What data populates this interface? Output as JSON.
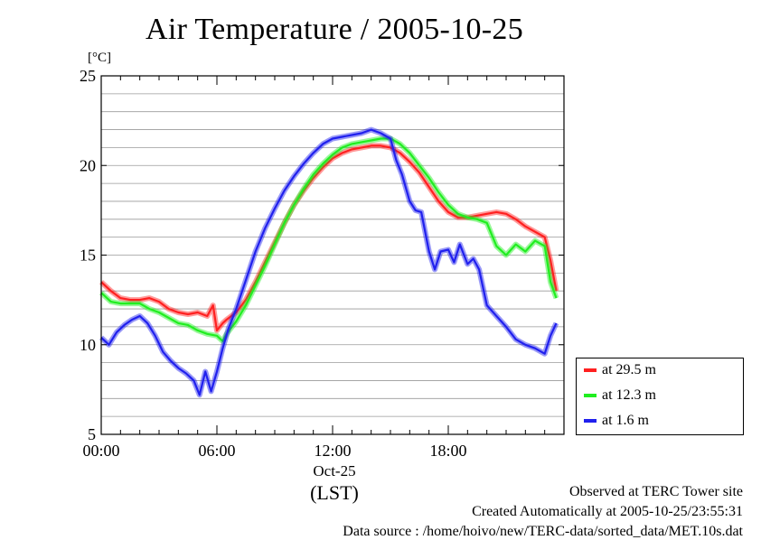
{
  "chart_data": {
    "type": "line",
    "title": "Air Temperature / 2005-10-25",
    "ylabel": "[°C]",
    "xlabel": "(LST)",
    "date_label": "Oct-25",
    "ylim": [
      5,
      25
    ],
    "xlim_hours": [
      0,
      24
    ],
    "y_ticks": [
      "5",
      "10",
      "15",
      "20",
      "25"
    ],
    "x_ticks": [
      {
        "hour": 0,
        "label": "00:00"
      },
      {
        "hour": 6,
        "label": "06:00"
      },
      {
        "hour": 12,
        "label": "12:00"
      },
      {
        "hour": 18,
        "label": "18:00"
      }
    ],
    "grid": true,
    "legend_position": "bottom-right",
    "series": [
      {
        "name": "at 29.5 m",
        "color": "#ff2020",
        "x": [
          0,
          0.5,
          1,
          1.5,
          2,
          2.5,
          3,
          3.5,
          4,
          4.5,
          5,
          5.5,
          5.8,
          6,
          6.3,
          6.5,
          7,
          7.5,
          8,
          8.5,
          9,
          9.5,
          10,
          10.5,
          11,
          11.5,
          12,
          12.5,
          13,
          13.5,
          14,
          14.5,
          15,
          15.5,
          16,
          16.5,
          17,
          17.5,
          18,
          18.5,
          19,
          19.5,
          20,
          20.5,
          21,
          21.5,
          22,
          22.5,
          23,
          23.3,
          23.6
        ],
        "y": [
          13.5,
          13.0,
          12.6,
          12.5,
          12.5,
          12.6,
          12.4,
          12.0,
          11.8,
          11.7,
          11.8,
          11.6,
          12.2,
          10.8,
          11.2,
          11.4,
          11.8,
          12.5,
          13.5,
          14.6,
          15.7,
          16.8,
          17.8,
          18.6,
          19.3,
          19.9,
          20.4,
          20.7,
          20.9,
          21.0,
          21.1,
          21.1,
          21.0,
          20.7,
          20.2,
          19.6,
          18.8,
          18.0,
          17.4,
          17.1,
          17.1,
          17.2,
          17.3,
          17.4,
          17.3,
          17.0,
          16.6,
          16.3,
          16.0,
          14.7,
          13.0
        ]
      },
      {
        "name": "at 12.3 m",
        "color": "#20ee20",
        "x": [
          0,
          0.5,
          1,
          1.5,
          2,
          2.5,
          3,
          3.5,
          4,
          4.5,
          5,
          5.5,
          6,
          6.3,
          6.5,
          7,
          7.5,
          8,
          8.5,
          9,
          9.5,
          10,
          10.5,
          11,
          11.5,
          12,
          12.5,
          13,
          13.5,
          14,
          14.5,
          15,
          15.5,
          16,
          16.5,
          17,
          17.5,
          18,
          18.5,
          19,
          19.5,
          20,
          20.5,
          21,
          21.5,
          22,
          22.5,
          23,
          23.3,
          23.6
        ],
        "y": [
          12.9,
          12.4,
          12.3,
          12.3,
          12.3,
          12.0,
          11.8,
          11.5,
          11.2,
          11.1,
          10.8,
          10.6,
          10.5,
          10.2,
          10.6,
          11.3,
          12.2,
          13.3,
          14.4,
          15.6,
          16.8,
          17.8,
          18.7,
          19.5,
          20.1,
          20.6,
          21.0,
          21.2,
          21.3,
          21.4,
          21.5,
          21.5,
          21.2,
          20.7,
          20.0,
          19.3,
          18.5,
          17.8,
          17.3,
          17.1,
          17.0,
          16.8,
          15.5,
          15.0,
          15.6,
          15.2,
          15.8,
          15.5,
          13.5,
          12.6
        ]
      },
      {
        "name": "at 1.6 m",
        "color": "#2020ee",
        "x": [
          0,
          0.4,
          0.8,
          1.2,
          1.6,
          2,
          2.4,
          2.8,
          3.2,
          3.6,
          4,
          4.4,
          4.8,
          5.1,
          5.4,
          5.7,
          6,
          6.3,
          6.6,
          7,
          7.5,
          8,
          8.5,
          9,
          9.5,
          10,
          10.5,
          11,
          11.5,
          12,
          12.5,
          13,
          13.5,
          14,
          14.5,
          15,
          15.3,
          15.6,
          16,
          16.3,
          16.6,
          17,
          17.3,
          17.6,
          18,
          18.3,
          18.6,
          19,
          19.3,
          19.6,
          20,
          20.5,
          21,
          21.5,
          22,
          22.5,
          23,
          23.3,
          23.6
        ],
        "y": [
          10.4,
          10.0,
          10.7,
          11.1,
          11.4,
          11.6,
          11.2,
          10.5,
          9.6,
          9.1,
          8.7,
          8.4,
          8.0,
          7.2,
          8.5,
          7.4,
          8.5,
          9.8,
          10.9,
          12.0,
          13.6,
          15.2,
          16.5,
          17.6,
          18.6,
          19.4,
          20.1,
          20.7,
          21.2,
          21.5,
          21.6,
          21.7,
          21.8,
          22.0,
          21.8,
          21.5,
          20.3,
          19.5,
          18.0,
          17.5,
          17.4,
          15.2,
          14.2,
          15.2,
          15.3,
          14.6,
          15.6,
          14.5,
          14.8,
          14.2,
          12.2,
          11.6,
          11.0,
          10.3,
          10.0,
          9.8,
          9.5,
          10.5,
          11.2
        ]
      }
    ]
  },
  "footer": {
    "line1": "Observed at TERC Tower site",
    "line2": "Created Automatically at 2005-10-25/23:55:31",
    "line3": "Data source : /home/hoivo/new/TERC-data/sorted_data/MET.10s.dat"
  }
}
